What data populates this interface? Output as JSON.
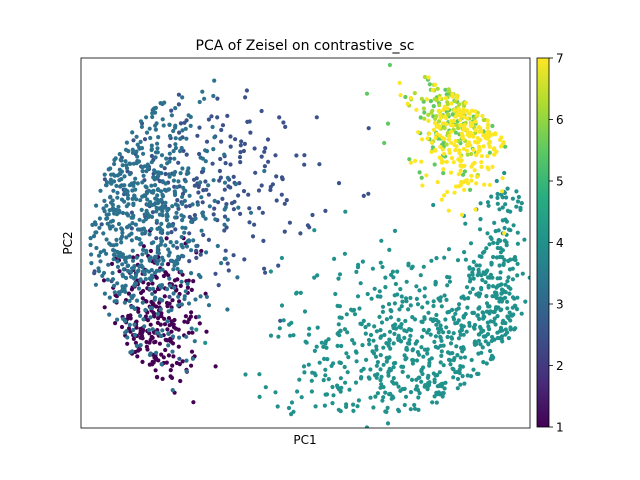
{
  "chart_data": {
    "type": "scatter",
    "title": "PCA of Zeisel on contrastive_sc",
    "xlabel": "PC1",
    "ylabel": "PC2",
    "x_ticks_shown": false,
    "y_ticks_shown": false,
    "grid": false,
    "legend": "colorbar-right",
    "colormap": "viridis",
    "colorbar": {
      "min": 1,
      "max": 7,
      "ticks": [
        "1",
        "2",
        "3",
        "4",
        "5",
        "6",
        "7"
      ]
    },
    "xlim": [
      0,
      1
    ],
    "ylim": [
      0,
      1
    ],
    "clusters": [
      {
        "value": 1,
        "color": "#440154",
        "centroid": [
          0.16,
          0.28
        ],
        "spread": [
          0.05,
          0.1
        ],
        "count": 260
      },
      {
        "value": 2,
        "color": "#3b528b",
        "centroid": [
          0.28,
          0.65
        ],
        "spread": [
          0.12,
          0.12
        ],
        "count": 230
      },
      {
        "value": 3,
        "color": "#2c728e",
        "centroid": [
          0.12,
          0.6
        ],
        "spread": [
          0.09,
          0.22
        ],
        "count": 650
      },
      {
        "value": 4,
        "color": "#21918c",
        "centroid": [
          0.77,
          0.2
        ],
        "spread": [
          0.16,
          0.14
        ],
        "count": 600
      },
      {
        "value": 4,
        "color": "#21918c",
        "centroid": [
          0.93,
          0.38
        ],
        "spread": [
          0.03,
          0.17
        ],
        "count": 200
      },
      {
        "value": 5,
        "color": "#5ec962",
        "centroid": [
          0.83,
          0.84
        ],
        "spread": [
          0.07,
          0.08
        ],
        "count": 90
      },
      {
        "value": 6,
        "color": "#addc30",
        "centroid": [
          0.84,
          0.87
        ],
        "spread": [
          0.05,
          0.06
        ],
        "count": 70
      },
      {
        "value": 7,
        "color": "#fde725",
        "centroid": [
          0.86,
          0.8
        ],
        "spread": [
          0.05,
          0.08
        ],
        "count": 230
      }
    ]
  }
}
